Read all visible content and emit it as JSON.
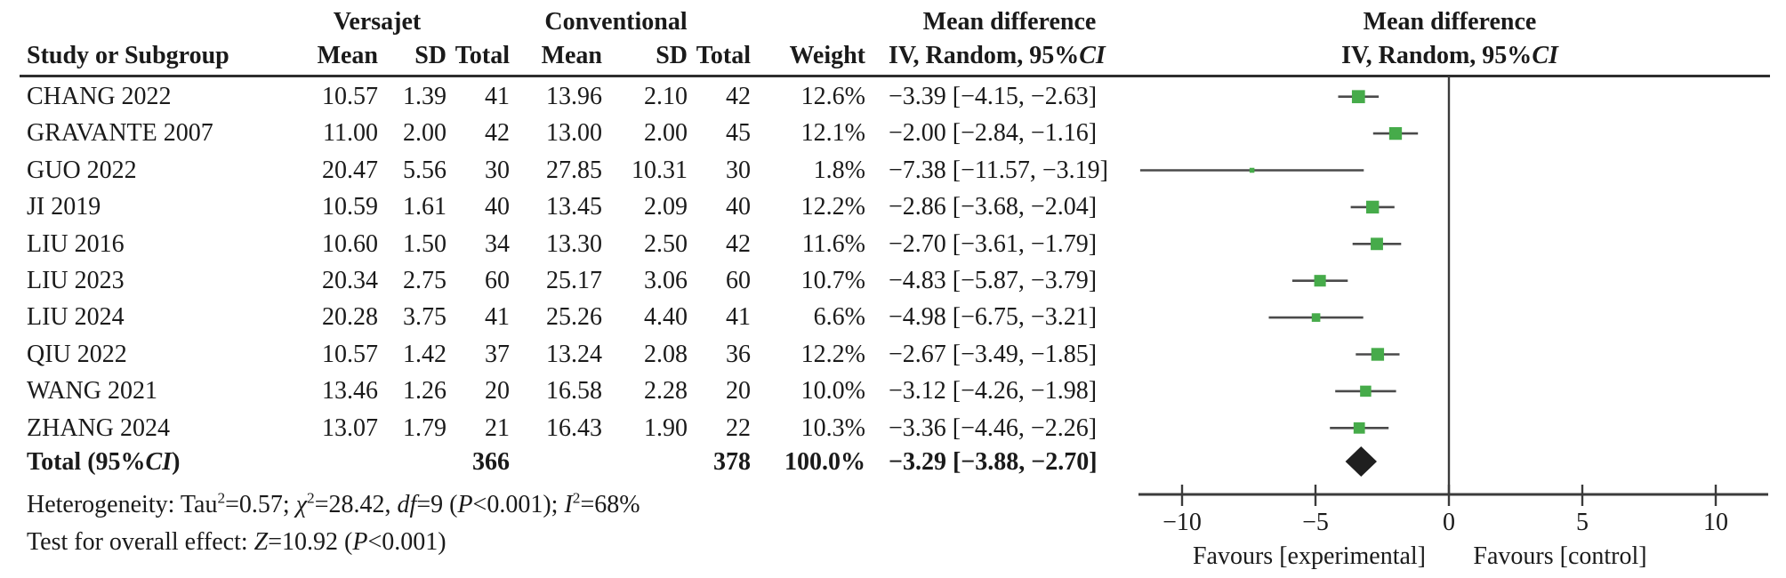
{
  "header": {
    "group_experimental": "Versajet",
    "group_control": "Conventional",
    "col_study": "Study or Subgroup",
    "col_mean": "Mean",
    "col_sd": "SD",
    "col_total": "Total",
    "col_weight": "Weight",
    "md_title": "Mean difference",
    "md_sub_prefix": "IV, Random, 95%",
    "md_sub_ci": "CI"
  },
  "rows": [
    {
      "study": "CHANG 2022",
      "mean_e": "10.57",
      "sd_e": "1.39",
      "total_e": "41",
      "mean_c": "13.96",
      "sd_c": "2.10",
      "total_c": "42",
      "weight": "12.6%",
      "ci_text": "−3.39 [−4.15, −2.63]"
    },
    {
      "study": "GRAVANTE 2007",
      "mean_e": "11.00",
      "sd_e": "2.00",
      "total_e": "42",
      "mean_c": "13.00",
      "sd_c": "2.00",
      "total_c": "45",
      "weight": "12.1%",
      "ci_text": "−2.00 [−2.84, −1.16]"
    },
    {
      "study": "GUO 2022",
      "mean_e": "20.47",
      "sd_e": "5.56",
      "total_e": "30",
      "mean_c": "27.85",
      "sd_c": "10.31",
      "total_c": "30",
      "weight": "1.8%",
      "ci_text": "−7.38 [−11.57, −3.19]"
    },
    {
      "study": "JI 2019",
      "mean_e": "10.59",
      "sd_e": "1.61",
      "total_e": "40",
      "mean_c": "13.45",
      "sd_c": "2.09",
      "total_c": "40",
      "weight": "12.2%",
      "ci_text": "−2.86 [−3.68, −2.04]"
    },
    {
      "study": "LIU 2016",
      "mean_e": "10.60",
      "sd_e": "1.50",
      "total_e": "34",
      "mean_c": "13.30",
      "sd_c": "2.50",
      "total_c": "42",
      "weight": "11.6%",
      "ci_text": "−2.70 [−3.61, −1.79]"
    },
    {
      "study": "LIU 2023",
      "mean_e": "20.34",
      "sd_e": "2.75",
      "total_e": "60",
      "mean_c": "25.17",
      "sd_c": "3.06",
      "total_c": "60",
      "weight": "10.7%",
      "ci_text": "−4.83 [−5.87, −3.79]"
    },
    {
      "study": "LIU 2024",
      "mean_e": "20.28",
      "sd_e": "3.75",
      "total_e": "41",
      "mean_c": "25.26",
      "sd_c": "4.40",
      "total_c": "41",
      "weight": "6.6%",
      "ci_text": "−4.98 [−6.75, −3.21]"
    },
    {
      "study": "QIU 2022",
      "mean_e": "10.57",
      "sd_e": "1.42",
      "total_e": "37",
      "mean_c": "13.24",
      "sd_c": "2.08",
      "total_c": "36",
      "weight": "12.2%",
      "ci_text": "−2.67 [−3.49, −1.85]"
    },
    {
      "study": "WANG 2021",
      "mean_e": "13.46",
      "sd_e": "1.26",
      "total_e": "20",
      "mean_c": "16.58",
      "sd_c": "2.28",
      "total_c": "20",
      "weight": "10.0%",
      "ci_text": "−3.12 [−4.26, −1.98]"
    },
    {
      "study": "ZHANG 2024",
      "mean_e": "13.07",
      "sd_e": "1.79",
      "total_e": "21",
      "mean_c": "16.43",
      "sd_c": "1.90",
      "total_c": "22",
      "weight": "10.3%",
      "ci_text": "−3.36 [−4.46, −2.26]"
    }
  ],
  "total": {
    "label_prefix": "Total (95%",
    "label_ci": "CI",
    "label_suffix": ")",
    "total_e": "366",
    "total_c": "378",
    "weight": "100.0%",
    "ci_text": "−3.29 [−3.88, −2.70]"
  },
  "footer": {
    "heterogeneity_segments": [
      {
        "t": "Heterogeneity: Tau"
      },
      {
        "sup": "2"
      },
      {
        "t": "=0.57; "
      },
      {
        "i": "χ"
      },
      {
        "sup": "2"
      },
      {
        "t": "=28.42, "
      },
      {
        "i": "df"
      },
      {
        "t": "=9 ("
      },
      {
        "i": "P"
      },
      {
        "t": "<0.001); "
      },
      {
        "i": "I"
      },
      {
        "sup": "2"
      },
      {
        "t": "=68%"
      }
    ],
    "test_segments": [
      {
        "t": "Test for overall effect: "
      },
      {
        "i": "Z"
      },
      {
        "t": "=10.92 ("
      },
      {
        "i": "P"
      },
      {
        "t": "<0.001)"
      }
    ]
  },
  "axis": {
    "tick_labels": [
      "−10",
      "−5",
      "0",
      "5",
      "10"
    ],
    "favours_left": "Favours [experimental]",
    "favours_right": "Favours [control]"
  },
  "colors": {
    "marker_green": "#46ab4a",
    "line_gray": "#4a4a4a",
    "axis_dark": "#3b3b3b",
    "diamond_black": "#1f1f1f"
  },
  "chart_data": {
    "type": "forest",
    "effect_measure": "Mean difference, IV, Random, 95% CI",
    "groups": {
      "experimental": "Versajet",
      "control": "Conventional"
    },
    "studies": [
      {
        "name": "CHANG 2022",
        "mean_e": 10.57,
        "sd_e": 1.39,
        "n_e": 41,
        "mean_c": 13.96,
        "sd_c": 2.1,
        "n_c": 42,
        "weight_pct": 12.6,
        "md": -3.39,
        "ci_low": -4.15,
        "ci_high": -2.63
      },
      {
        "name": "GRAVANTE 2007",
        "mean_e": 11.0,
        "sd_e": 2.0,
        "n_e": 42,
        "mean_c": 13.0,
        "sd_c": 2.0,
        "n_c": 45,
        "weight_pct": 12.1,
        "md": -2.0,
        "ci_low": -2.84,
        "ci_high": -1.16
      },
      {
        "name": "GUO 2022",
        "mean_e": 20.47,
        "sd_e": 5.56,
        "n_e": 30,
        "mean_c": 27.85,
        "sd_c": 10.31,
        "n_c": 30,
        "weight_pct": 1.8,
        "md": -7.38,
        "ci_low": -11.57,
        "ci_high": -3.19
      },
      {
        "name": "JI 2019",
        "mean_e": 10.59,
        "sd_e": 1.61,
        "n_e": 40,
        "mean_c": 13.45,
        "sd_c": 2.09,
        "n_c": 40,
        "weight_pct": 12.2,
        "md": -2.86,
        "ci_low": -3.68,
        "ci_high": -2.04
      },
      {
        "name": "LIU 2016",
        "mean_e": 10.6,
        "sd_e": 1.5,
        "n_e": 34,
        "mean_c": 13.3,
        "sd_c": 2.5,
        "n_c": 42,
        "weight_pct": 11.6,
        "md": -2.7,
        "ci_low": -3.61,
        "ci_high": -1.79
      },
      {
        "name": "LIU 2023",
        "mean_e": 20.34,
        "sd_e": 2.75,
        "n_e": 60,
        "mean_c": 25.17,
        "sd_c": 3.06,
        "n_c": 60,
        "weight_pct": 10.7,
        "md": -4.83,
        "ci_low": -5.87,
        "ci_high": -3.79
      },
      {
        "name": "LIU 2024",
        "mean_e": 20.28,
        "sd_e": 3.75,
        "n_e": 41,
        "mean_c": 25.26,
        "sd_c": 4.4,
        "n_c": 41,
        "weight_pct": 6.6,
        "md": -4.98,
        "ci_low": -6.75,
        "ci_high": -3.21
      },
      {
        "name": "QIU 2022",
        "mean_e": 10.57,
        "sd_e": 1.42,
        "n_e": 37,
        "mean_c": 13.24,
        "sd_c": 2.08,
        "n_c": 36,
        "weight_pct": 12.2,
        "md": -2.67,
        "ci_low": -3.49,
        "ci_high": -1.85
      },
      {
        "name": "WANG 2021",
        "mean_e": 13.46,
        "sd_e": 1.26,
        "n_e": 20,
        "mean_c": 16.58,
        "sd_c": 2.28,
        "n_c": 20,
        "weight_pct": 10.0,
        "md": -3.12,
        "ci_low": -4.26,
        "ci_high": -1.98
      },
      {
        "name": "ZHANG 2024",
        "mean_e": 13.07,
        "sd_e": 1.79,
        "n_e": 21,
        "mean_c": 16.43,
        "sd_c": 1.9,
        "n_c": 22,
        "weight_pct": 10.3,
        "md": -3.36,
        "ci_low": -4.46,
        "ci_high": -2.26
      }
    ],
    "total": {
      "n_e": 366,
      "n_c": 378,
      "weight_pct": 100.0,
      "md": -3.29,
      "ci_low": -3.88,
      "ci_high": -2.7
    },
    "heterogeneity": {
      "tau2": 0.57,
      "chi2": 28.42,
      "df": 9,
      "p": "<0.001",
      "i2_pct": 68
    },
    "overall_effect": {
      "z": 10.92,
      "p": "<0.001"
    },
    "x_axis": {
      "ticks": [
        -10,
        -5,
        0,
        5,
        10
      ],
      "xlim": [
        -11.6,
        11.9
      ],
      "label_left": "Favours [experimental]",
      "label_right": "Favours [control]"
    }
  }
}
